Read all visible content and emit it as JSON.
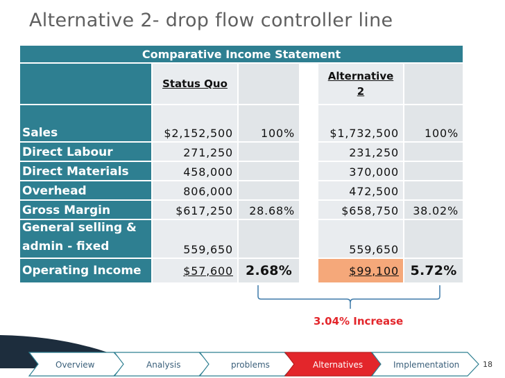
{
  "slide": {
    "title": "Alternative 2- drop flow controller line",
    "page_number": "18"
  },
  "table": {
    "banner": "Comparative Income Statement",
    "header": {
      "status_quo": "Status Quo",
      "alternative_line1": "Alternative",
      "alternative_line2": "2"
    },
    "rows": [
      {
        "label": "Sales",
        "sq_value": "$2,152,500",
        "sq_pct": "100%",
        "alt_value": "$1,732,500",
        "alt_pct": "100%"
      },
      {
        "label": "Direct Labour",
        "sq_value": "271,250",
        "sq_pct": "",
        "alt_value": "231,250",
        "alt_pct": ""
      },
      {
        "label": "Direct Materials",
        "sq_value": "458,000",
        "sq_pct": "",
        "alt_value": "370,000",
        "alt_pct": ""
      },
      {
        "label": "Overhead",
        "sq_value": "806,000",
        "sq_pct": "",
        "alt_value": "472,500",
        "alt_pct": ""
      },
      {
        "label": "Gross Margin",
        "sq_value": "$617,250",
        "sq_pct": "28.68%",
        "alt_value": "$658,750",
        "alt_pct": "38.02%"
      },
      {
        "label_line1": "General selling &",
        "label_line2": "admin - fixed",
        "sq_value": "559,650",
        "sq_pct": "",
        "alt_value": "559,650",
        "alt_pct": ""
      },
      {
        "label": "Operating Income",
        "sq_value": "$57,600",
        "sq_pct": "2.68%",
        "alt_value": "$99,100",
        "alt_pct": "5.72%"
      }
    ]
  },
  "annotation": {
    "increase_label": "3.04% Increase",
    "color": "#e3262b"
  },
  "nav": {
    "items": [
      {
        "label": "Overview",
        "active": false
      },
      {
        "label": "Analysis",
        "active": false
      },
      {
        "label": "problems",
        "active": false
      },
      {
        "label": "Alternatives",
        "active": true
      },
      {
        "label": "Implementation",
        "active": false
      }
    ]
  },
  "colors": {
    "teal": "#2e7f91",
    "light_cell": "#e9ecef",
    "highlight_orange": "#f5a87a",
    "active_nav": "#e3262b"
  }
}
